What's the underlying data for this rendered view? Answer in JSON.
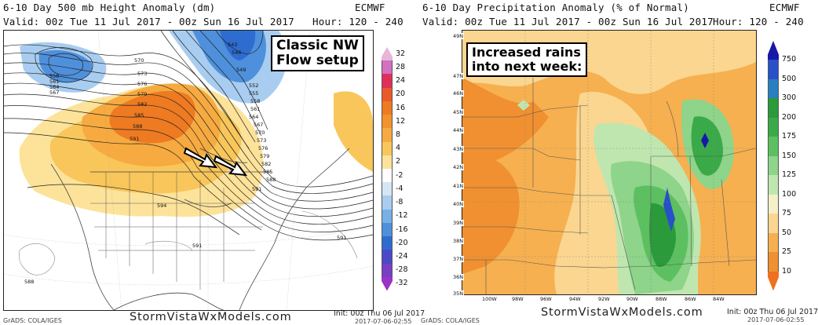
{
  "left": {
    "title": "6-10 Day 500 mb Height Anomaly (dm)",
    "model": "ECMWF",
    "valid": "Valid: 00z Tue 11 Jul 2017 - 00z Sun 16 Jul 2017",
    "hour": "Hour: 120 - 240",
    "callout_line1": "Classic NW",
    "callout_line2": "Flow setup",
    "contour_labels": [
      "558",
      "561",
      "564",
      "567",
      "570",
      "573",
      "576",
      "579",
      "582",
      "585",
      "588",
      "591",
      "594",
      "543",
      "546",
      "549",
      "552",
      "555",
      "558",
      "561",
      "564",
      "567",
      "570",
      "573",
      "576",
      "579",
      "582",
      "585",
      "588",
      "591",
      "591",
      "588",
      "591"
    ],
    "colorbar_labels": [
      "32",
      "28",
      "24",
      "20",
      "16",
      "12",
      "8",
      "4",
      "2",
      "-2",
      "-4",
      "-8",
      "-12",
      "-16",
      "-20",
      "-24",
      "-28",
      "-32"
    ],
    "colors": [
      "#e8b4d8",
      "#d470c0",
      "#e0305a",
      "#e85a2a",
      "#ee7a22",
      "#f4922c",
      "#f6aa40",
      "#f8c65a",
      "#fde39a",
      "#ffffff",
      "#d6e6f4",
      "#a8cdf0",
      "#78b0e8",
      "#4e90dc",
      "#2e6cd0",
      "#4a4ac8",
      "#7a3ec4",
      "#9a34c8"
    ],
    "init": "Init: 00z Thu 06 Jul 2017",
    "stamp": "2017-07-06-02:55",
    "credit": "GrADS: COLA/IGES",
    "brand": "StormVistaWxModels.com"
  },
  "right": {
    "title": "6-10 Day Precipitation Anomaly (% of Normal)",
    "model": "ECMWF",
    "valid": "Valid: 00z Tue 11 Jul 2017 - 00z Sun 16 Jul 2017",
    "hour": "Hour: 120 - 240",
    "callout_line1": "Increased rains",
    "callout_line2": "into next week:",
    "lat_labels": [
      "49N",
      "47N",
      "46N",
      "45N",
      "44N",
      "43N",
      "42N",
      "41N",
      "40N",
      "39N",
      "38N",
      "37N",
      "36N",
      "35N"
    ],
    "lon_labels": [
      "100W",
      "98W",
      "96W",
      "94W",
      "92W",
      "90W",
      "88W",
      "86W",
      "84W"
    ],
    "colorbar_labels": [
      "750",
      "500",
      "300",
      "200",
      "175",
      "150",
      "125",
      "100",
      "75",
      "50",
      "25",
      "10"
    ],
    "colors": [
      "#1818a8",
      "#2850c8",
      "#2880c0",
      "#2a9a3a",
      "#3aaa48",
      "#5cc060",
      "#8ed48a",
      "#c0e6b0",
      "#f4f0c8",
      "#fad690",
      "#f6b050",
      "#f09030",
      "#ee7020"
    ],
    "init": "Init: 00z Thu 06 Jul 2017",
    "stamp": "2017-07-06-02:55",
    "credit": "GrADS: COLA/IGES",
    "brand": "StormVistaWxModels.com"
  }
}
